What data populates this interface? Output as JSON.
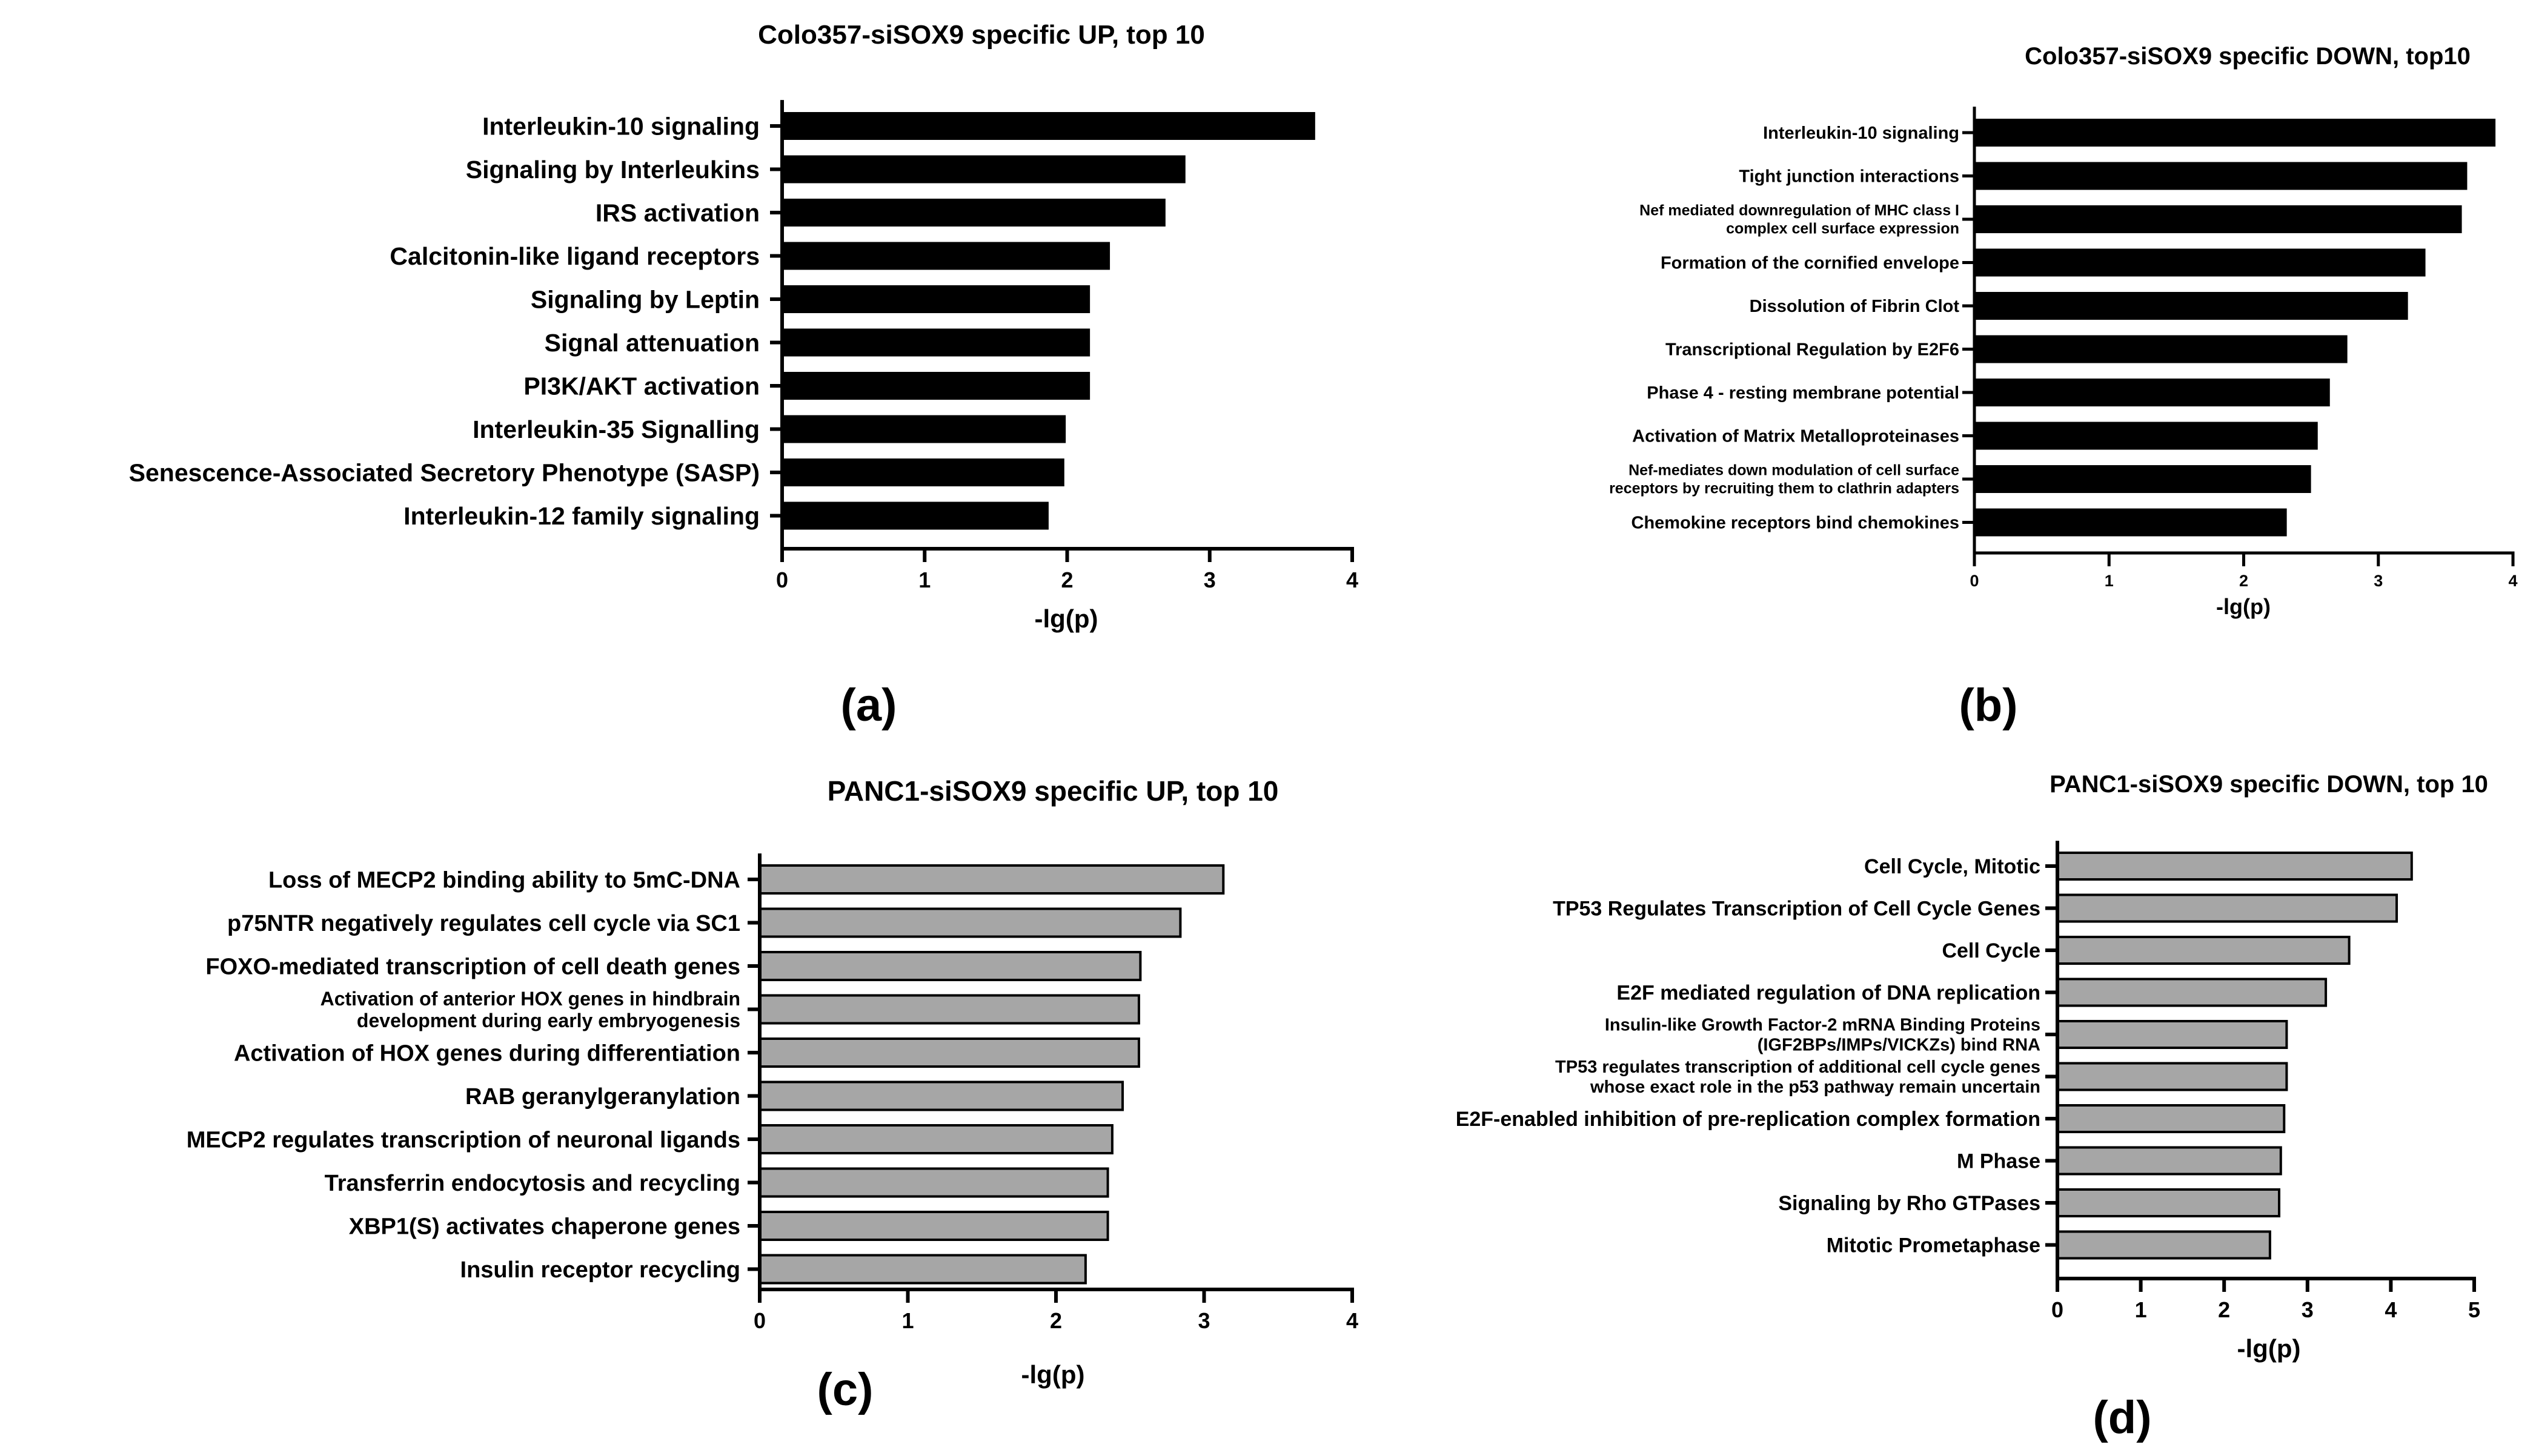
{
  "chart_data": [
    {
      "type": "bar",
      "orientation": "horizontal",
      "panel_label": "(a)",
      "title": "Colo357-siSOX9 specific UP, top 10",
      "xlabel": "-lg(p)",
      "ylabel": "",
      "xlim": [
        0,
        4
      ],
      "xticks": [
        "0",
        "1",
        "2",
        "3",
        "4"
      ],
      "bar_color": "#000000",
      "categories": [
        [
          "Interleukin-10 signaling"
        ],
        [
          "Signaling by Interleukins"
        ],
        [
          "IRS activation"
        ],
        [
          "Calcitonin-like ligand receptors"
        ],
        [
          "Signaling by Leptin"
        ],
        [
          "Signal attenuation"
        ],
        [
          "PI3K/AKT activation"
        ],
        [
          "Interleukin-35 Signalling"
        ],
        [
          "Senescence-Associated Secretory Phenotype (SASP)"
        ],
        [
          "Interleukin-12 family signaling"
        ]
      ],
      "values": [
        3.74,
        2.83,
        2.69,
        2.3,
        2.16,
        2.16,
        2.16,
        1.99,
        1.98,
        1.87
      ]
    },
    {
      "type": "bar",
      "orientation": "horizontal",
      "panel_label": "(b)",
      "title": "Colo357-siSOX9 specific DOWN, top10",
      "xlabel": "-lg(p)",
      "ylabel": "",
      "xlim": [
        0,
        4
      ],
      "xticks": [
        "0",
        "1",
        "2",
        "3",
        "4"
      ],
      "bar_color": "#000000",
      "categories": [
        [
          "Interleukin-10 signaling"
        ],
        [
          "Tight junction interactions"
        ],
        [
          "Nef mediated downregulation of MHC class I",
          "complex cell surface expression"
        ],
        [
          "Formation of the cornified envelope"
        ],
        [
          "Dissolution of Fibrin Clot"
        ],
        [
          "Transcriptional Regulation by E2F6"
        ],
        [
          "Phase 4 - resting membrane potential"
        ],
        [
          "Activation of Matrix Metalloproteinases"
        ],
        [
          "Nef-mediates down modulation of cell surface",
          "receptors by recruiting them to clathrin adapters"
        ],
        [
          "Chemokine receptors bind chemokines"
        ]
      ],
      "values": [
        3.87,
        3.66,
        3.62,
        3.35,
        3.22,
        2.77,
        2.64,
        2.55,
        2.5,
        2.32
      ]
    },
    {
      "type": "bar",
      "orientation": "horizontal",
      "panel_label": "(c)",
      "title": "PANC1-siSOX9 specific UP, top 10",
      "xlabel": "-lg(p)",
      "ylabel": "",
      "xlim": [
        0,
        4
      ],
      "xticks": [
        "0",
        "1",
        "2",
        "3",
        "4"
      ],
      "bar_color": "#a6a6a6",
      "categories": [
        [
          "Loss of MECP2 binding ability to 5mC-DNA"
        ],
        [
          "p75NTR negatively regulates cell cycle via SC1"
        ],
        [
          "FOXO-mediated transcription of cell death genes"
        ],
        [
          "Activation of anterior HOX genes in hindbrain",
          "development during early embryogenesis"
        ],
        [
          "Activation of HOX genes during differentiation"
        ],
        [
          "RAB geranylgeranylation"
        ],
        [
          "MECP2 regulates transcription of neuronal ligands"
        ],
        [
          "Transferrin endocytosis and recycling"
        ],
        [
          "XBP1(S) activates chaperone genes"
        ],
        [
          "Insulin receptor recycling"
        ]
      ],
      "values": [
        3.13,
        2.84,
        2.57,
        2.56,
        2.56,
        2.45,
        2.38,
        2.35,
        2.35,
        2.2
      ]
    },
    {
      "type": "bar",
      "orientation": "horizontal",
      "panel_label": "(d)",
      "title": "PANC1-siSOX9 specific DOWN, top 10",
      "xlabel": "-lg(p)",
      "ylabel": "",
      "xlim": [
        0,
        5
      ],
      "xticks": [
        "0",
        "1",
        "2",
        "3",
        "4",
        "5"
      ],
      "bar_color": "#a6a6a6",
      "categories": [
        [
          "Cell Cycle, Mitotic"
        ],
        [
          "TP53 Regulates Transcription of Cell Cycle Genes"
        ],
        [
          "Cell Cycle"
        ],
        [
          "E2F mediated regulation of DNA replication"
        ],
        [
          "Insulin-like Growth Factor-2 mRNA Binding Proteins",
          "(IGF2BPs/IMPs/VICKZs) bind RNA"
        ],
        [
          "TP53 regulates transcription of additional cell cycle genes",
          "whose exact role in the p53 pathway remain uncertain"
        ],
        [
          "E2F-enabled inhibition of pre-replication complex formation"
        ],
        [
          "M Phase"
        ],
        [
          "Signaling by Rho GTPases"
        ],
        [
          "Mitotic Prometaphase"
        ]
      ],
      "values": [
        4.25,
        4.07,
        3.5,
        3.22,
        2.75,
        2.75,
        2.72,
        2.68,
        2.66,
        2.55
      ]
    }
  ]
}
